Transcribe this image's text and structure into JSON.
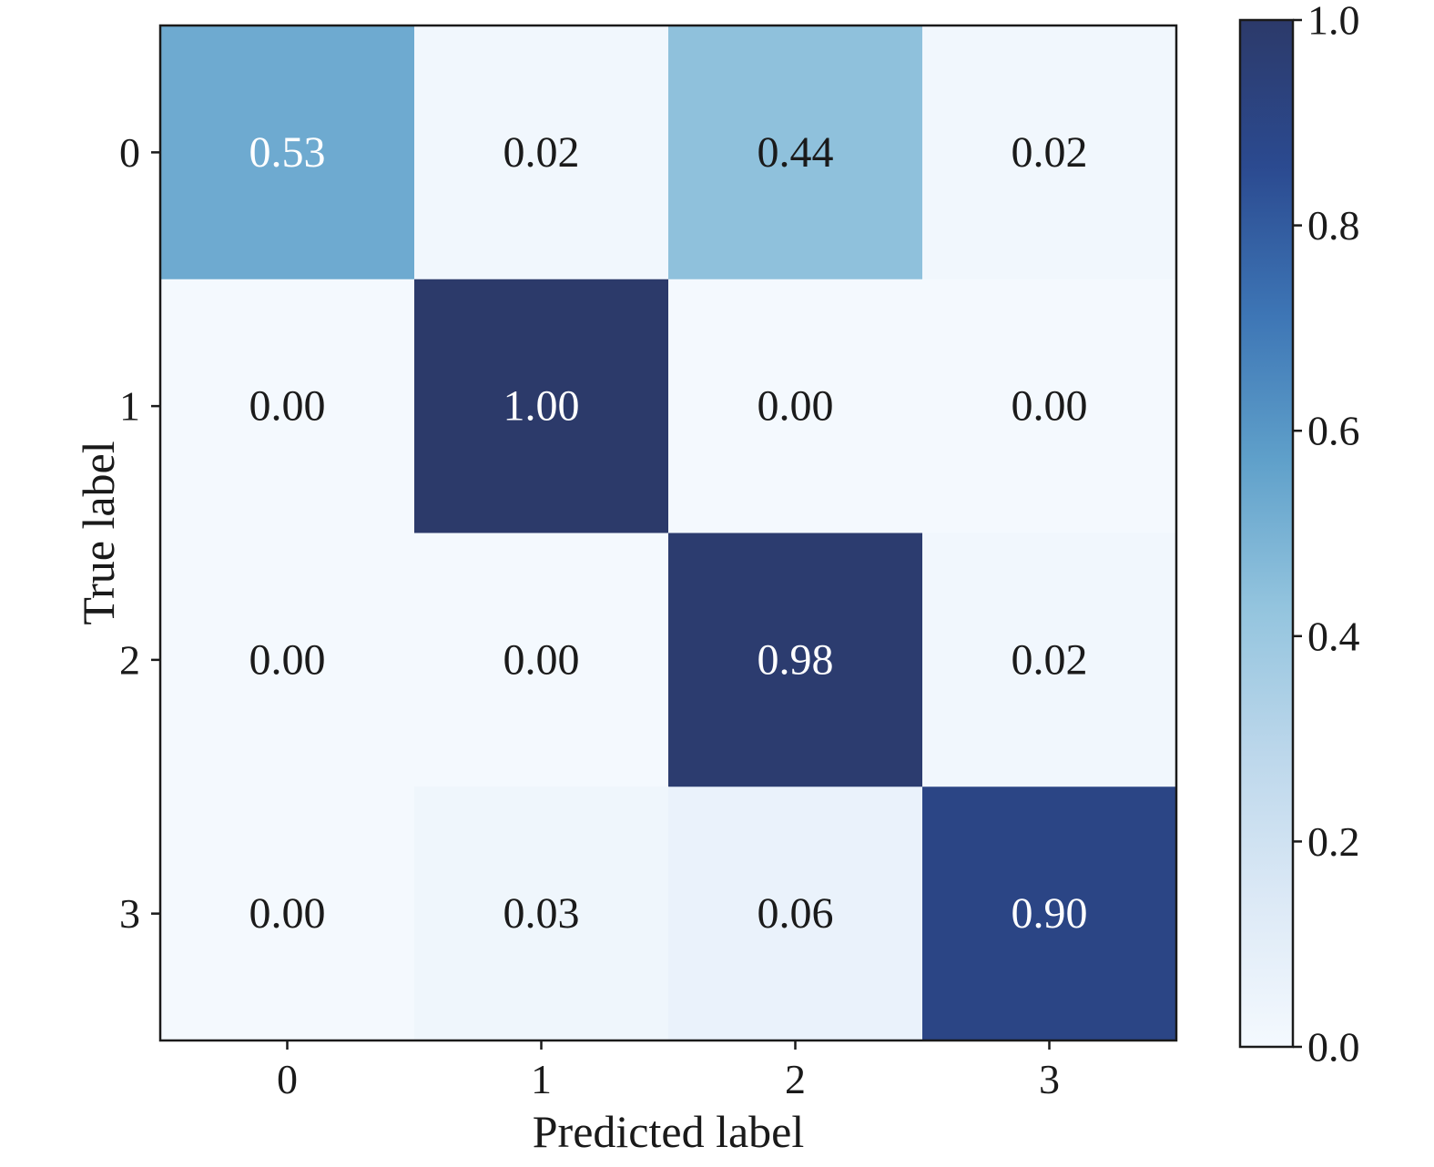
{
  "chart_data": {
    "type": "heatmap",
    "title": "",
    "xlabel": "Predicted label",
    "ylabel": "True label",
    "x_categories": [
      "0",
      "1",
      "2",
      "3"
    ],
    "y_categories": [
      "0",
      "1",
      "2",
      "3"
    ],
    "matrix": [
      [
        0.53,
        0.02,
        0.44,
        0.02
      ],
      [
        0.0,
        1.0,
        0.0,
        0.0
      ],
      [
        0.0,
        0.0,
        0.98,
        0.02
      ],
      [
        0.0,
        0.03,
        0.06,
        0.9
      ]
    ],
    "cell_labels": [
      [
        "0.53",
        "0.02",
        "0.44",
        "0.02"
      ],
      [
        "0.00",
        "1.00",
        "0.00",
        "0.00"
      ],
      [
        "0.00",
        "0.00",
        "0.98",
        "0.02"
      ],
      [
        "0.00",
        "0.03",
        "0.06",
        "0.90"
      ]
    ],
    "colorbar": {
      "range": [
        0.0,
        1.0
      ],
      "ticks": [
        0.0,
        0.2,
        0.4,
        0.6,
        0.8,
        1.0
      ],
      "tick_labels": [
        "0.0",
        "0.2",
        "0.4",
        "0.6",
        "0.8",
        "1.0"
      ],
      "colormap": "Blues",
      "position": "right"
    },
    "colors": {
      "text_dark": "#1a1a1a",
      "text_light": "#ffffff",
      "frame": "#1a1a1a",
      "colormap_stops": [
        "#f4f9fe",
        "#dce9f6",
        "#bcd7eb",
        "#93c4de",
        "#5fa0ca",
        "#3d75b5",
        "#2b4a90",
        "#2c3a6a"
      ]
    }
  }
}
